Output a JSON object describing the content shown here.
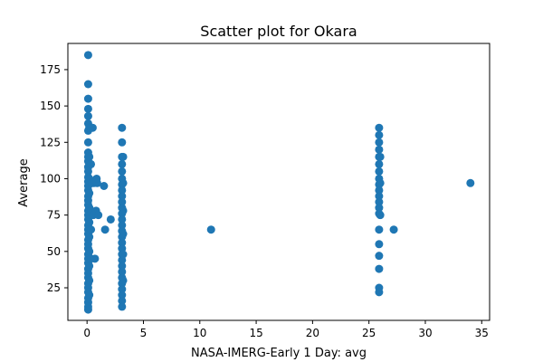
{
  "chart_data": {
    "type": "scatter",
    "title": "Scatter plot for Okara",
    "xlabel": "NASA-IMERG-Early 1 Day: avg",
    "ylabel": "Average",
    "xlim": [
      -1.7,
      35.7
    ],
    "ylim": [
      2.6,
      193.0
    ],
    "xticks": [
      0,
      5,
      10,
      15,
      20,
      25,
      30,
      35
    ],
    "yticks": [
      25,
      50,
      75,
      100,
      125,
      150,
      175
    ],
    "grid": false,
    "color": "#1f77b4",
    "points": [
      [
        0.1,
        185
      ],
      [
        0.1,
        165
      ],
      [
        0.1,
        155
      ],
      [
        0.1,
        148
      ],
      [
        0.1,
        143
      ],
      [
        0.1,
        138
      ],
      [
        0.1,
        133
      ],
      [
        0.1,
        125
      ],
      [
        0.1,
        118
      ],
      [
        0.1,
        115
      ],
      [
        0.1,
        112
      ],
      [
        0.1,
        108
      ],
      [
        0.1,
        105
      ],
      [
        0.1,
        101
      ],
      [
        0.1,
        98
      ],
      [
        0.1,
        95
      ],
      [
        0.1,
        92
      ],
      [
        0.1,
        88
      ],
      [
        0.1,
        85
      ],
      [
        0.1,
        82
      ],
      [
        0.1,
        78
      ],
      [
        0.1,
        75
      ],
      [
        0.1,
        72
      ],
      [
        0.1,
        68
      ],
      [
        0.1,
        65
      ],
      [
        0.1,
        62
      ],
      [
        0.1,
        58
      ],
      [
        0.1,
        55
      ],
      [
        0.1,
        52
      ],
      [
        0.1,
        48
      ],
      [
        0.1,
        45
      ],
      [
        0.1,
        42
      ],
      [
        0.1,
        38
      ],
      [
        0.1,
        35
      ],
      [
        0.1,
        32
      ],
      [
        0.1,
        28
      ],
      [
        0.1,
        25
      ],
      [
        0.1,
        22
      ],
      [
        0.1,
        18
      ],
      [
        0.1,
        15
      ],
      [
        0.1,
        12
      ],
      [
        0.1,
        10
      ],
      [
        0.2,
        135
      ],
      [
        0.2,
        115
      ],
      [
        0.2,
        100
      ],
      [
        0.2,
        97
      ],
      [
        0.2,
        90
      ],
      [
        0.2,
        80
      ],
      [
        0.2,
        70
      ],
      [
        0.2,
        60
      ],
      [
        0.2,
        50
      ],
      [
        0.2,
        40
      ],
      [
        0.2,
        30
      ],
      [
        0.2,
        20
      ],
      [
        0.35,
        135
      ],
      [
        0.35,
        110
      ],
      [
        0.35,
        97
      ],
      [
        0.35,
        78
      ],
      [
        0.35,
        65
      ],
      [
        0.35,
        45
      ],
      [
        0.45,
        97
      ],
      [
        0.55,
        75
      ],
      [
        0.5,
        135
      ],
      [
        0.6,
        97
      ],
      [
        0.7,
        45
      ],
      [
        0.8,
        78
      ],
      [
        0.9,
        97
      ],
      [
        1.0,
        75
      ],
      [
        0.85,
        100
      ],
      [
        1.5,
        95
      ],
      [
        1.6,
        65
      ],
      [
        2.1,
        72
      ],
      [
        3.1,
        135
      ],
      [
        3.1,
        125
      ],
      [
        3.1,
        115
      ],
      [
        3.1,
        110
      ],
      [
        3.1,
        105
      ],
      [
        3.1,
        100
      ],
      [
        3.1,
        96
      ],
      [
        3.1,
        92
      ],
      [
        3.1,
        88
      ],
      [
        3.1,
        84
      ],
      [
        3.1,
        80
      ],
      [
        3.1,
        76
      ],
      [
        3.1,
        72
      ],
      [
        3.1,
        68
      ],
      [
        3.1,
        64
      ],
      [
        3.1,
        60
      ],
      [
        3.1,
        56
      ],
      [
        3.1,
        52
      ],
      [
        3.1,
        48
      ],
      [
        3.1,
        44
      ],
      [
        3.1,
        40
      ],
      [
        3.1,
        36
      ],
      [
        3.1,
        32
      ],
      [
        3.1,
        28
      ],
      [
        3.1,
        24
      ],
      [
        3.1,
        20
      ],
      [
        3.1,
        16
      ],
      [
        3.1,
        12
      ],
      [
        3.2,
        115
      ],
      [
        3.2,
        97
      ],
      [
        3.2,
        78
      ],
      [
        3.2,
        62
      ],
      [
        3.2,
        48
      ],
      [
        3.2,
        30
      ],
      [
        11.0,
        65
      ],
      [
        25.9,
        135
      ],
      [
        25.9,
        130
      ],
      [
        25.9,
        125
      ],
      [
        25.9,
        120
      ],
      [
        25.9,
        115
      ],
      [
        25.9,
        110
      ],
      [
        25.9,
        105
      ],
      [
        25.9,
        100
      ],
      [
        25.9,
        96
      ],
      [
        25.9,
        92
      ],
      [
        25.9,
        88
      ],
      [
        25.9,
        84
      ],
      [
        25.9,
        80
      ],
      [
        25.9,
        76
      ],
      [
        25.9,
        65
      ],
      [
        25.9,
        55
      ],
      [
        25.9,
        47
      ],
      [
        25.9,
        38
      ],
      [
        25.9,
        25
      ],
      [
        25.9,
        22
      ],
      [
        26.0,
        115
      ],
      [
        26.0,
        97
      ],
      [
        26.0,
        75
      ],
      [
        27.2,
        65
      ],
      [
        34.0,
        97
      ]
    ]
  }
}
